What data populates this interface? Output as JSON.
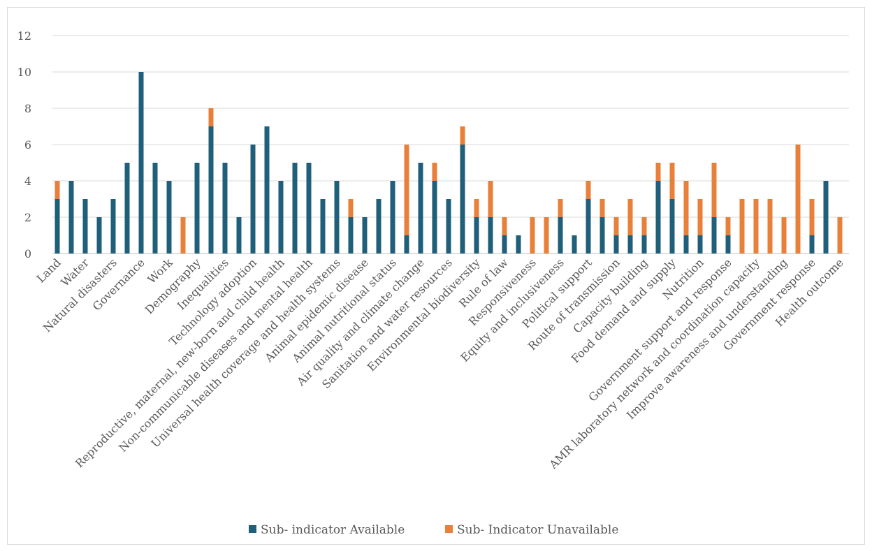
{
  "chart_data": {
    "type": "bar",
    "stacked": true,
    "title": "",
    "xlabel": "",
    "ylabel": "",
    "ylim": [
      0,
      12
    ],
    "yticks": [
      0,
      2,
      4,
      6,
      8,
      10,
      12
    ],
    "grid": true,
    "legend_position": "bottom",
    "colors": {
      "available": "#1f5f7a",
      "unavailable": "#e8803a"
    },
    "categories_labeled": [
      "Land",
      "Water",
      "Natural disasters",
      "Governance",
      "Work",
      "Demography",
      "Inequalities",
      "Technology adoption",
      "Reproductive, maternal, new-born and child health",
      "Non-communicable diseases and mental health",
      "Universal health coverage and health systems",
      "Animal epidemic disease",
      "Animal nutritional status",
      "Air quality and climate change",
      "Sanitation and water resources",
      "Environmental biodiversity",
      "Rule of law",
      "Responsiveness",
      "Equity and inclusiveness",
      "Political support",
      "Route of transmission",
      "Capacity building",
      "Food demand and supply",
      "Nutrition",
      "Government support and response",
      "AMR laboratory network and coordination capacity",
      "Improve awareness and understanding",
      "Government response",
      "Health outcome"
    ],
    "series": [
      {
        "name": "Sub- indicator Available",
        "values": [
          3,
          4,
          3,
          2,
          3,
          5,
          10,
          5,
          4,
          0,
          5,
          7,
          5,
          2,
          6,
          7,
          4,
          5,
          5,
          3,
          4,
          2,
          2,
          3,
          4,
          1,
          5,
          4,
          3,
          6,
          2,
          2,
          1,
          1,
          0,
          0,
          2,
          1,
          3,
          2,
          1,
          1,
          1,
          4,
          3,
          1,
          1,
          2,
          1,
          0,
          0,
          0,
          0,
          0,
          1,
          4,
          0
        ]
      },
      {
        "name": "Sub- Indicator Unavailable",
        "values": [
          1,
          0,
          0,
          0,
          0,
          0,
          0,
          0,
          0,
          2,
          0,
          1,
          0,
          0,
          0,
          0,
          0,
          0,
          0,
          0,
          0,
          1,
          0,
          0,
          0,
          5,
          0,
          1,
          0,
          1,
          1,
          2,
          1,
          0,
          2,
          2,
          1,
          0,
          1,
          1,
          1,
          2,
          1,
          1,
          2,
          3,
          2,
          3,
          1,
          3,
          3,
          3,
          2,
          6,
          2,
          0,
          2
        ]
      }
    ]
  },
  "legend": {
    "available": "Sub- indicator Available",
    "unavailable": "Sub- Indicator Unavailable"
  }
}
